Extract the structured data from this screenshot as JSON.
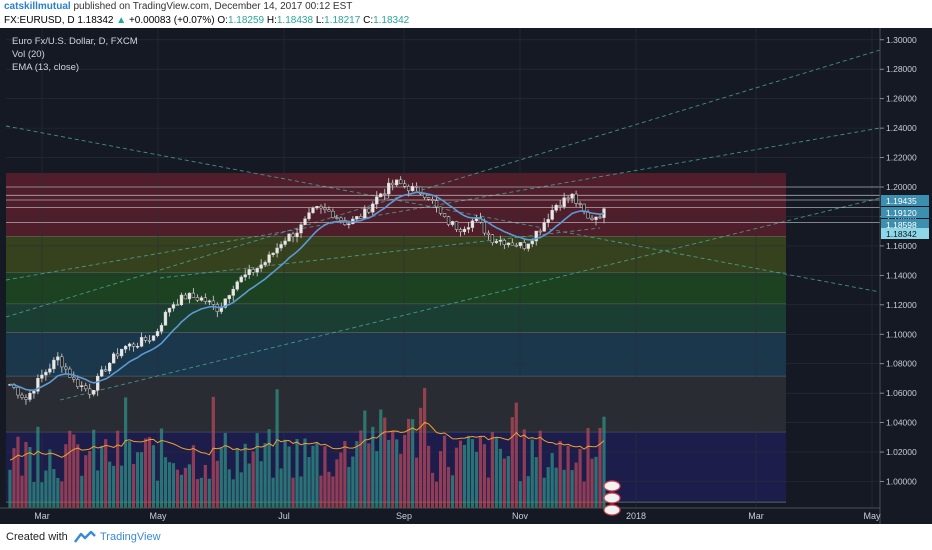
{
  "header": {
    "user": "catskillmutual",
    "published": "published on TradingView.com, December 14, 2017 00:12 EST",
    "symbol": "FX:EURUSD, D",
    "last": "1.18342",
    "change_arrow": "▲",
    "change": "+0.00083 (+0.07%)",
    "o_label": "O:",
    "o": "1.18259",
    "h_label": "H:",
    "h": "1.18438",
    "l_label": "L:",
    "l": "1.18217",
    "c_label": "C:",
    "c": "1.18342"
  },
  "legend": {
    "title": "Euro Fx/U.S. Dollar, D, FXCM",
    "vol": "Vol (20)",
    "ema": "EMA (13, close)"
  },
  "footer": {
    "created": "Created with",
    "brand": "TradingView"
  },
  "colors": {
    "background": "#151924",
    "up": "#26a69a",
    "down": "#ef5350",
    "ema": "#5b9bd5",
    "vol_ma": "#f0a030",
    "price_label": "#8fd6e6"
  },
  "chart_data": {
    "type": "candlestick",
    "y_axis": {
      "range": [
        0.982,
        1.308
      ],
      "ticks": [
        "1.00000",
        "1.02000",
        "1.04000",
        "1.06000",
        "1.08000",
        "1.10000",
        "1.12000",
        "1.14000",
        "1.16000",
        "1.18000",
        "1.20000",
        "1.22000",
        "1.24000",
        "1.26000",
        "1.28000",
        "1.30000"
      ]
    },
    "x_axis": {
      "ticks": [
        "Mar",
        "May",
        "Jul",
        "Sep",
        "Nov",
        "2018",
        "Mar",
        "May"
      ]
    },
    "price_labels": [
      "1.19435",
      "1.19120",
      "1.18598",
      "1.18342"
    ],
    "horizontal_levels": [
      1.19435,
      1.1912,
      1.18598,
      1.2,
      1.176
    ],
    "fib_zones": [
      {
        "from": 1.2095,
        "to": 1.1665,
        "color": "#5a1f2c"
      },
      {
        "from": 1.1665,
        "to": 1.142,
        "color": "#3b4a1c"
      },
      {
        "from": 1.142,
        "to": 1.1205,
        "color": "#1e4a22"
      },
      {
        "from": 1.1205,
        "to": 1.101,
        "color": "#1c4536"
      },
      {
        "from": 1.101,
        "to": 1.0715,
        "color": "#1b3d52"
      },
      {
        "from": 1.0715,
        "to": 1.0335,
        "color": "#2e3036"
      },
      {
        "from": 1.0335,
        "to": 0.986,
        "color": "#1d1f52"
      }
    ],
    "price_series": [
      {
        "month": "Feb",
        "close": 1.066
      },
      {
        "month": "Mar",
        "close": 1.056
      },
      {
        "month": "Mar",
        "close": 1.072
      },
      {
        "month": "Mar",
        "close": 1.084
      },
      {
        "month": "Apr",
        "close": 1.068
      },
      {
        "month": "Apr",
        "close": 1.061
      },
      {
        "month": "Apr",
        "close": 1.078
      },
      {
        "month": "Apr",
        "close": 1.091
      },
      {
        "month": "May",
        "close": 1.094
      },
      {
        "month": "May",
        "close": 1.099
      },
      {
        "month": "May",
        "close": 1.12
      },
      {
        "month": "May",
        "close": 1.126
      },
      {
        "month": "Jun",
        "close": 1.124
      },
      {
        "month": "Jun",
        "close": 1.117
      },
      {
        "month": "Jun",
        "close": 1.135
      },
      {
        "month": "Jun",
        "close": 1.142
      },
      {
        "month": "Jul",
        "close": 1.15
      },
      {
        "month": "Jul",
        "close": 1.164
      },
      {
        "month": "Jul",
        "close": 1.171
      },
      {
        "month": "Jul",
        "close": 1.185
      },
      {
        "month": "Aug",
        "close": 1.183
      },
      {
        "month": "Aug",
        "close": 1.175
      },
      {
        "month": "Aug",
        "close": 1.181
      },
      {
        "month": "Aug",
        "close": 1.195
      },
      {
        "month": "Sep",
        "close": 1.203
      },
      {
        "month": "Sep",
        "close": 1.199
      },
      {
        "month": "Sep",
        "close": 1.195
      },
      {
        "month": "Sep",
        "close": 1.178
      },
      {
        "month": "Oct",
        "close": 1.172
      },
      {
        "month": "Oct",
        "close": 1.178
      },
      {
        "month": "Oct",
        "close": 1.165
      },
      {
        "month": "Oct",
        "close": 1.163
      },
      {
        "month": "Nov",
        "close": 1.16
      },
      {
        "month": "Nov",
        "close": 1.172
      },
      {
        "month": "Nov",
        "close": 1.188
      },
      {
        "month": "Nov",
        "close": 1.194
      },
      {
        "month": "Dec",
        "close": 1.178
      },
      {
        "month": "Dec",
        "close": 1.183
      }
    ]
  }
}
